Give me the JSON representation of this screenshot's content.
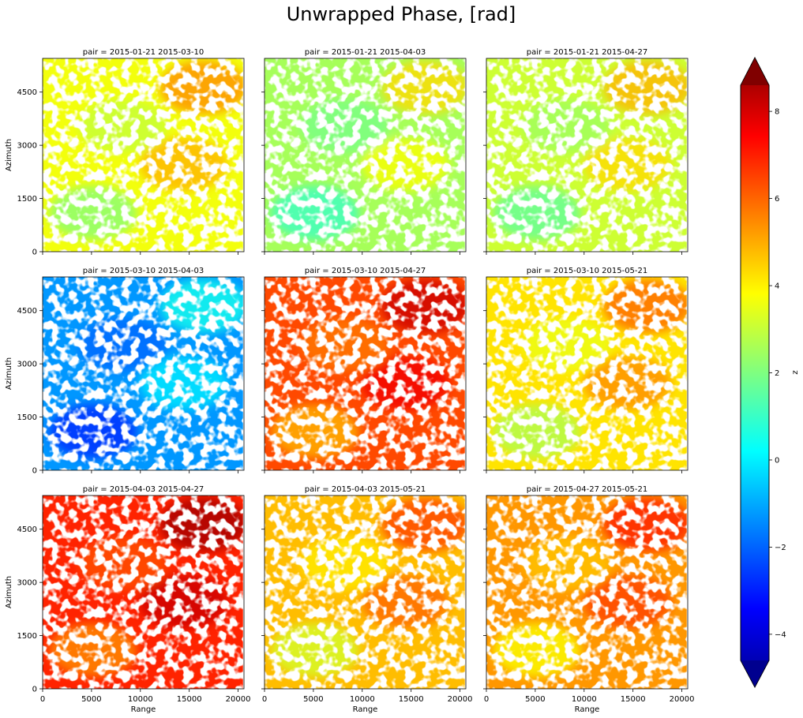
{
  "chart_data": {
    "type": "heatmap",
    "title": "Unwrapped Phase, [rad]",
    "xlabel": "Range",
    "ylabel": "Azimuth",
    "xlim": [
      0,
      20600
    ],
    "ylim": [
      0,
      5450
    ],
    "xticks": [
      0,
      5000,
      10000,
      15000,
      20000
    ],
    "yticks": [
      0,
      1500,
      3000,
      4500
    ],
    "colormap": "jet",
    "colorbar": {
      "label": "z",
      "range": [
        -4.6,
        8.6
      ],
      "ticks": [
        -4,
        -2,
        0,
        2,
        4,
        6,
        8
      ],
      "tick_labels": [
        "−4",
        "−2",
        "0",
        "2",
        "4",
        "6",
        "8"
      ],
      "extend": "both"
    },
    "panels": [
      {
        "title": "pair = 2015-01-21 2015-03-10",
        "dominant_value": 3.5
      },
      {
        "title": "pair = 2015-01-21 2015-04-03",
        "dominant_value": 2.5
      },
      {
        "title": "pair = 2015-01-21 2015-04-27",
        "dominant_value": 3.0
      },
      {
        "title": "pair = 2015-03-10 2015-04-03",
        "dominant_value": -1.0
      },
      {
        "title": "pair = 2015-03-10 2015-04-27",
        "dominant_value": 6.0
      },
      {
        "title": "pair = 2015-03-10 2015-05-21",
        "dominant_value": 4.0
      },
      {
        "title": "pair = 2015-04-03 2015-04-27",
        "dominant_value": 6.5
      },
      {
        "title": "pair = 2015-04-03 2015-05-21",
        "dominant_value": 4.5
      },
      {
        "title": "pair = 2015-04-27 2015-05-21",
        "dominant_value": 5.0
      }
    ]
  }
}
